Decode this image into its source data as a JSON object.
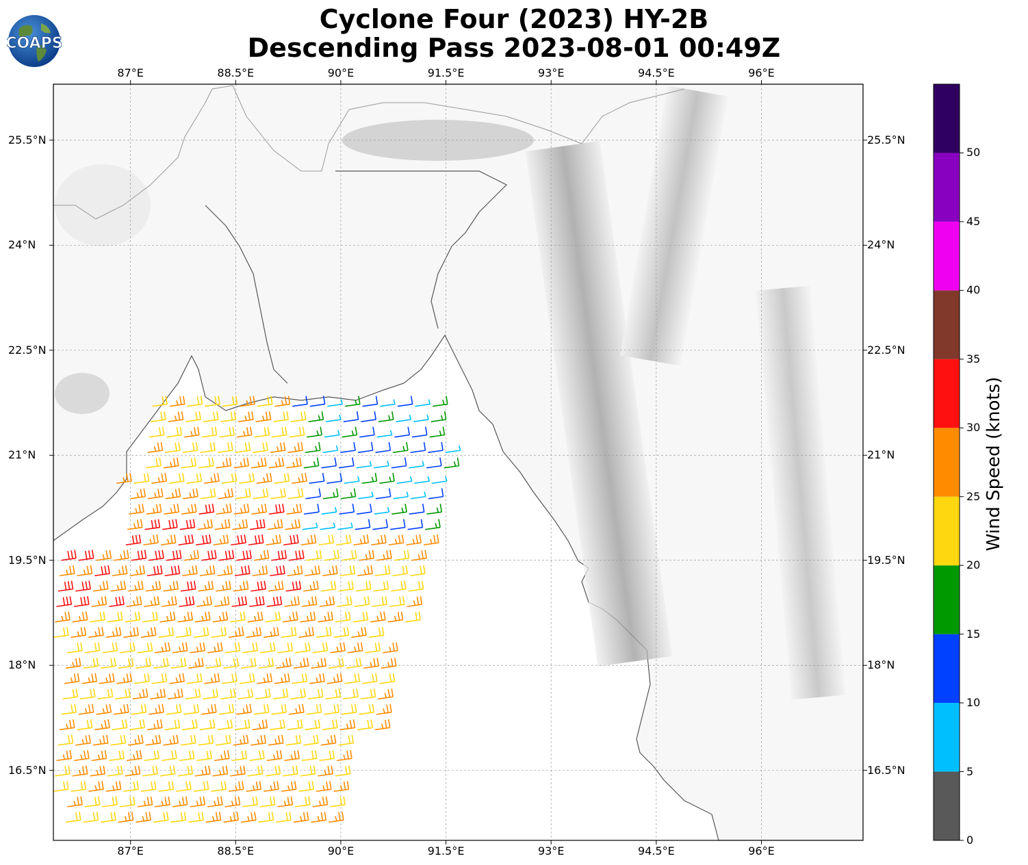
{
  "title": {
    "line1": "Cyclone Four (2023) HY-2B",
    "line2": "Descending Pass 2023-08-01 00:49Z"
  },
  "logo": {
    "text": "COAPS",
    "icon": "globe-logo-icon"
  },
  "map": {
    "lon_ticks": [
      "87°E",
      "88.5°E",
      "90°E",
      "91.5°E",
      "93°E",
      "94.5°E",
      "96°E"
    ],
    "lat_ticks": [
      "25.5°N",
      "24°N",
      "22.5°N",
      "21°N",
      "19.5°N",
      "18°N",
      "16.5°N"
    ],
    "extent": {
      "lon_min": 85.9,
      "lon_max": 97.45,
      "lat_min": 15.5,
      "lat_max": 26.3
    },
    "grid": true
  },
  "colorbar": {
    "label": "Wind Speed (knots)",
    "ticks": [
      "0",
      "5",
      "10",
      "15",
      "20",
      "25",
      "30",
      "35",
      "40",
      "45",
      "50"
    ],
    "colors": [
      "#595959",
      "#00bfff",
      "#0040ff",
      "#009900",
      "#ffd710",
      "#ff8c00",
      "#ff1010",
      "#80392b",
      "#f000f0",
      "#8800c0",
      "#300060"
    ],
    "bounds": [
      0,
      5,
      10,
      15,
      20,
      25,
      30,
      35,
      40,
      45,
      50,
      55
    ]
  },
  "chart_data": {
    "type": "wind-barb-map",
    "units": "knots",
    "swath_regions": [
      {
        "region": "northern Bay of Bengal near 90-91.5°E, 20-21.5°N",
        "speed_range_kt": [
          5,
          20
        ]
      },
      {
        "region": "west-central Bay of Bengal 86.5-89°E, 19-20.5°N",
        "speed_range_kt": [
          25,
          35
        ]
      },
      {
        "region": "southern swath 85.9-90.5°E, 15.5-19°N",
        "speed_range_kt": [
          15,
          30
        ]
      }
    ]
  }
}
